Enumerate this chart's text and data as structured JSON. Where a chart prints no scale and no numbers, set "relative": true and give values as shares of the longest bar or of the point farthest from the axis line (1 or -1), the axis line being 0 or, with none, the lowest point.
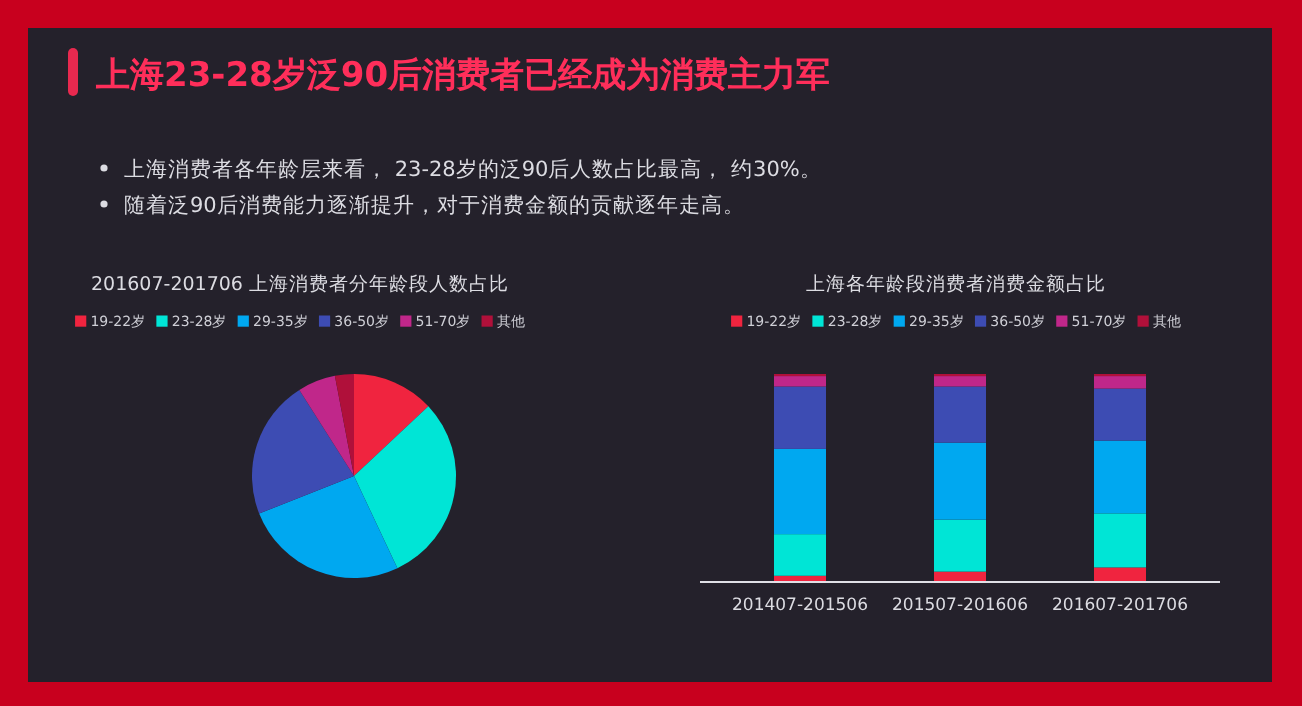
{
  "chart_data": [
    {
      "type": "other",
      "title": "上海23-28岁泛90后消费者已经成为消费主力军",
      "annotations": [
        "上海消费者各年龄层来看， 23-28岁的泛90后人数占比最高， 约30%。",
        "随着泛90后消费能力逐渐提升，对于消费金额的贡献逐年走高。"
      ]
    },
    {
      "type": "pie",
      "title": "201607-201706 上海消费者分年龄段人数占比",
      "legend": "top",
      "categories": [
        "19-22岁",
        "23-28岁",
        "29-35岁",
        "36-50岁",
        "51-70岁",
        "其他"
      ],
      "values": [
        13,
        30,
        26,
        22,
        6,
        3
      ],
      "colors": [
        "#f0243f",
        "#00e5d6",
        "#00a8f0",
        "#3d4cb3",
        "#c0278a",
        "#b0103a"
      ]
    },
    {
      "type": "bar",
      "title": "上海各年龄段消费者消费金额占比",
      "legend": "top",
      "stacked": true,
      "relative": true,
      "categories": [
        "201407-201506",
        "201507-201606",
        "201607-201706"
      ],
      "series": [
        {
          "name": "19-22岁",
          "color": "#f0243f",
          "values": [
            0.03,
            0.05,
            0.07
          ]
        },
        {
          "name": "23-28岁",
          "color": "#00e5d6",
          "values": [
            0.2,
            0.25,
            0.26
          ]
        },
        {
          "name": "29-35岁",
          "color": "#00a8f0",
          "values": [
            0.41,
            0.37,
            0.35
          ]
        },
        {
          "name": "36-50岁",
          "color": "#3d4cb3",
          "values": [
            0.3,
            0.27,
            0.25
          ]
        },
        {
          "name": "51-70岁",
          "color": "#c0278a",
          "values": [
            0.05,
            0.05,
            0.06
          ]
        },
        {
          "name": "其他",
          "color": "#b0103a",
          "values": [
            0.01,
            0.01,
            0.01
          ]
        }
      ]
    }
  ]
}
